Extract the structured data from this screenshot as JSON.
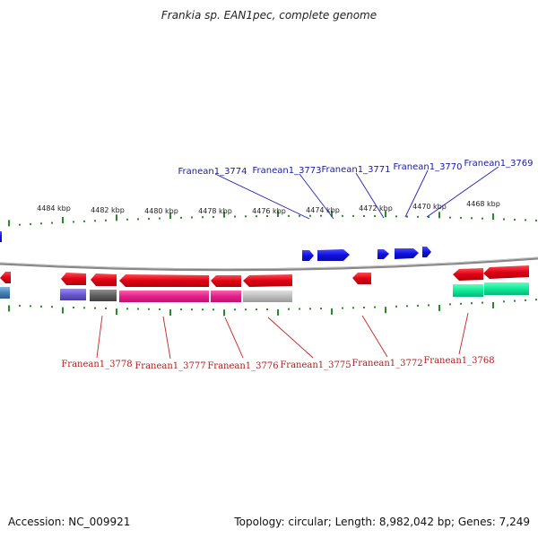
{
  "title": "Frankia sp. EAN1pec, complete genome",
  "footer": {
    "accession": "Accession: NC_009921",
    "summary": "Topology: circular; Length: 8,982,042 bp; Genes: 7,249"
  },
  "colors": {
    "forward_gene": "#1a1ad6",
    "reverse_gene": "#e01020",
    "top_label": "#1a1aa6",
    "bottom_label": "#b31a1a",
    "top_leader": "#2020c0",
    "bottom_leader": "#cc2020",
    "tick": "#2a8a2a",
    "backbone": "#888888"
  },
  "ruler_labels": [
    "4484 kbp",
    "4482 kbp",
    "4480 kbp",
    "4478 kbp",
    "4476 kbp",
    "4474 kbp",
    "4472 kbp",
    "4470 kbp",
    "4468 kbp"
  ],
  "top_genes": [
    "Franean1_3774",
    "Franean1_3773",
    "Franean1_3771",
    "Franean1_3770",
    "Franean1_3769"
  ],
  "bottom_genes": [
    "Franean1_3778",
    "Franean1_3777",
    "Franean1_3776",
    "Franean1_3775",
    "Franean1_3772",
    "Franean1_3768"
  ]
}
